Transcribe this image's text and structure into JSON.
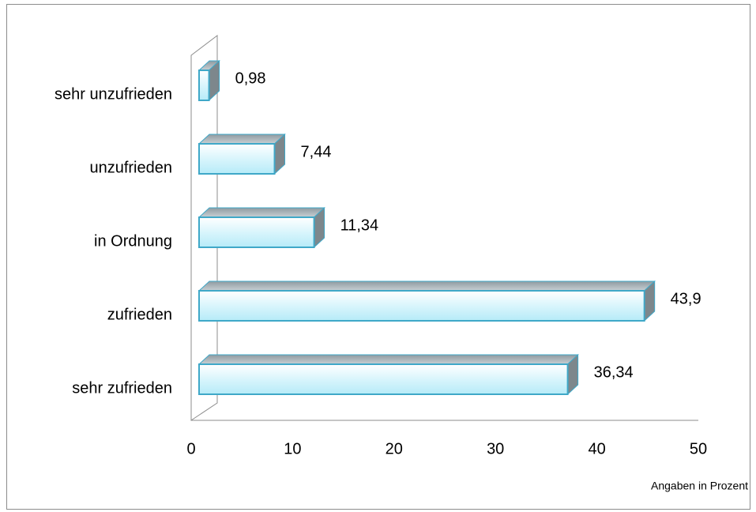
{
  "chart_data": {
    "type": "bar",
    "orientation": "horizontal",
    "categories": [
      "sehr unzufrieden",
      "unzufrieden",
      "in Ordnung",
      "zufrieden",
      "sehr zufrieden"
    ],
    "values": [
      0.98,
      7.44,
      11.34,
      43.9,
      36.34
    ],
    "value_labels": [
      "0,98",
      "7,44",
      "11,34",
      "43,9",
      "36,34"
    ],
    "color": "#c8f0fb",
    "xlim": [
      0,
      50
    ],
    "xticks": [
      0,
      10,
      20,
      30,
      40,
      50
    ],
    "xlabel": "Angaben in Prozent"
  }
}
